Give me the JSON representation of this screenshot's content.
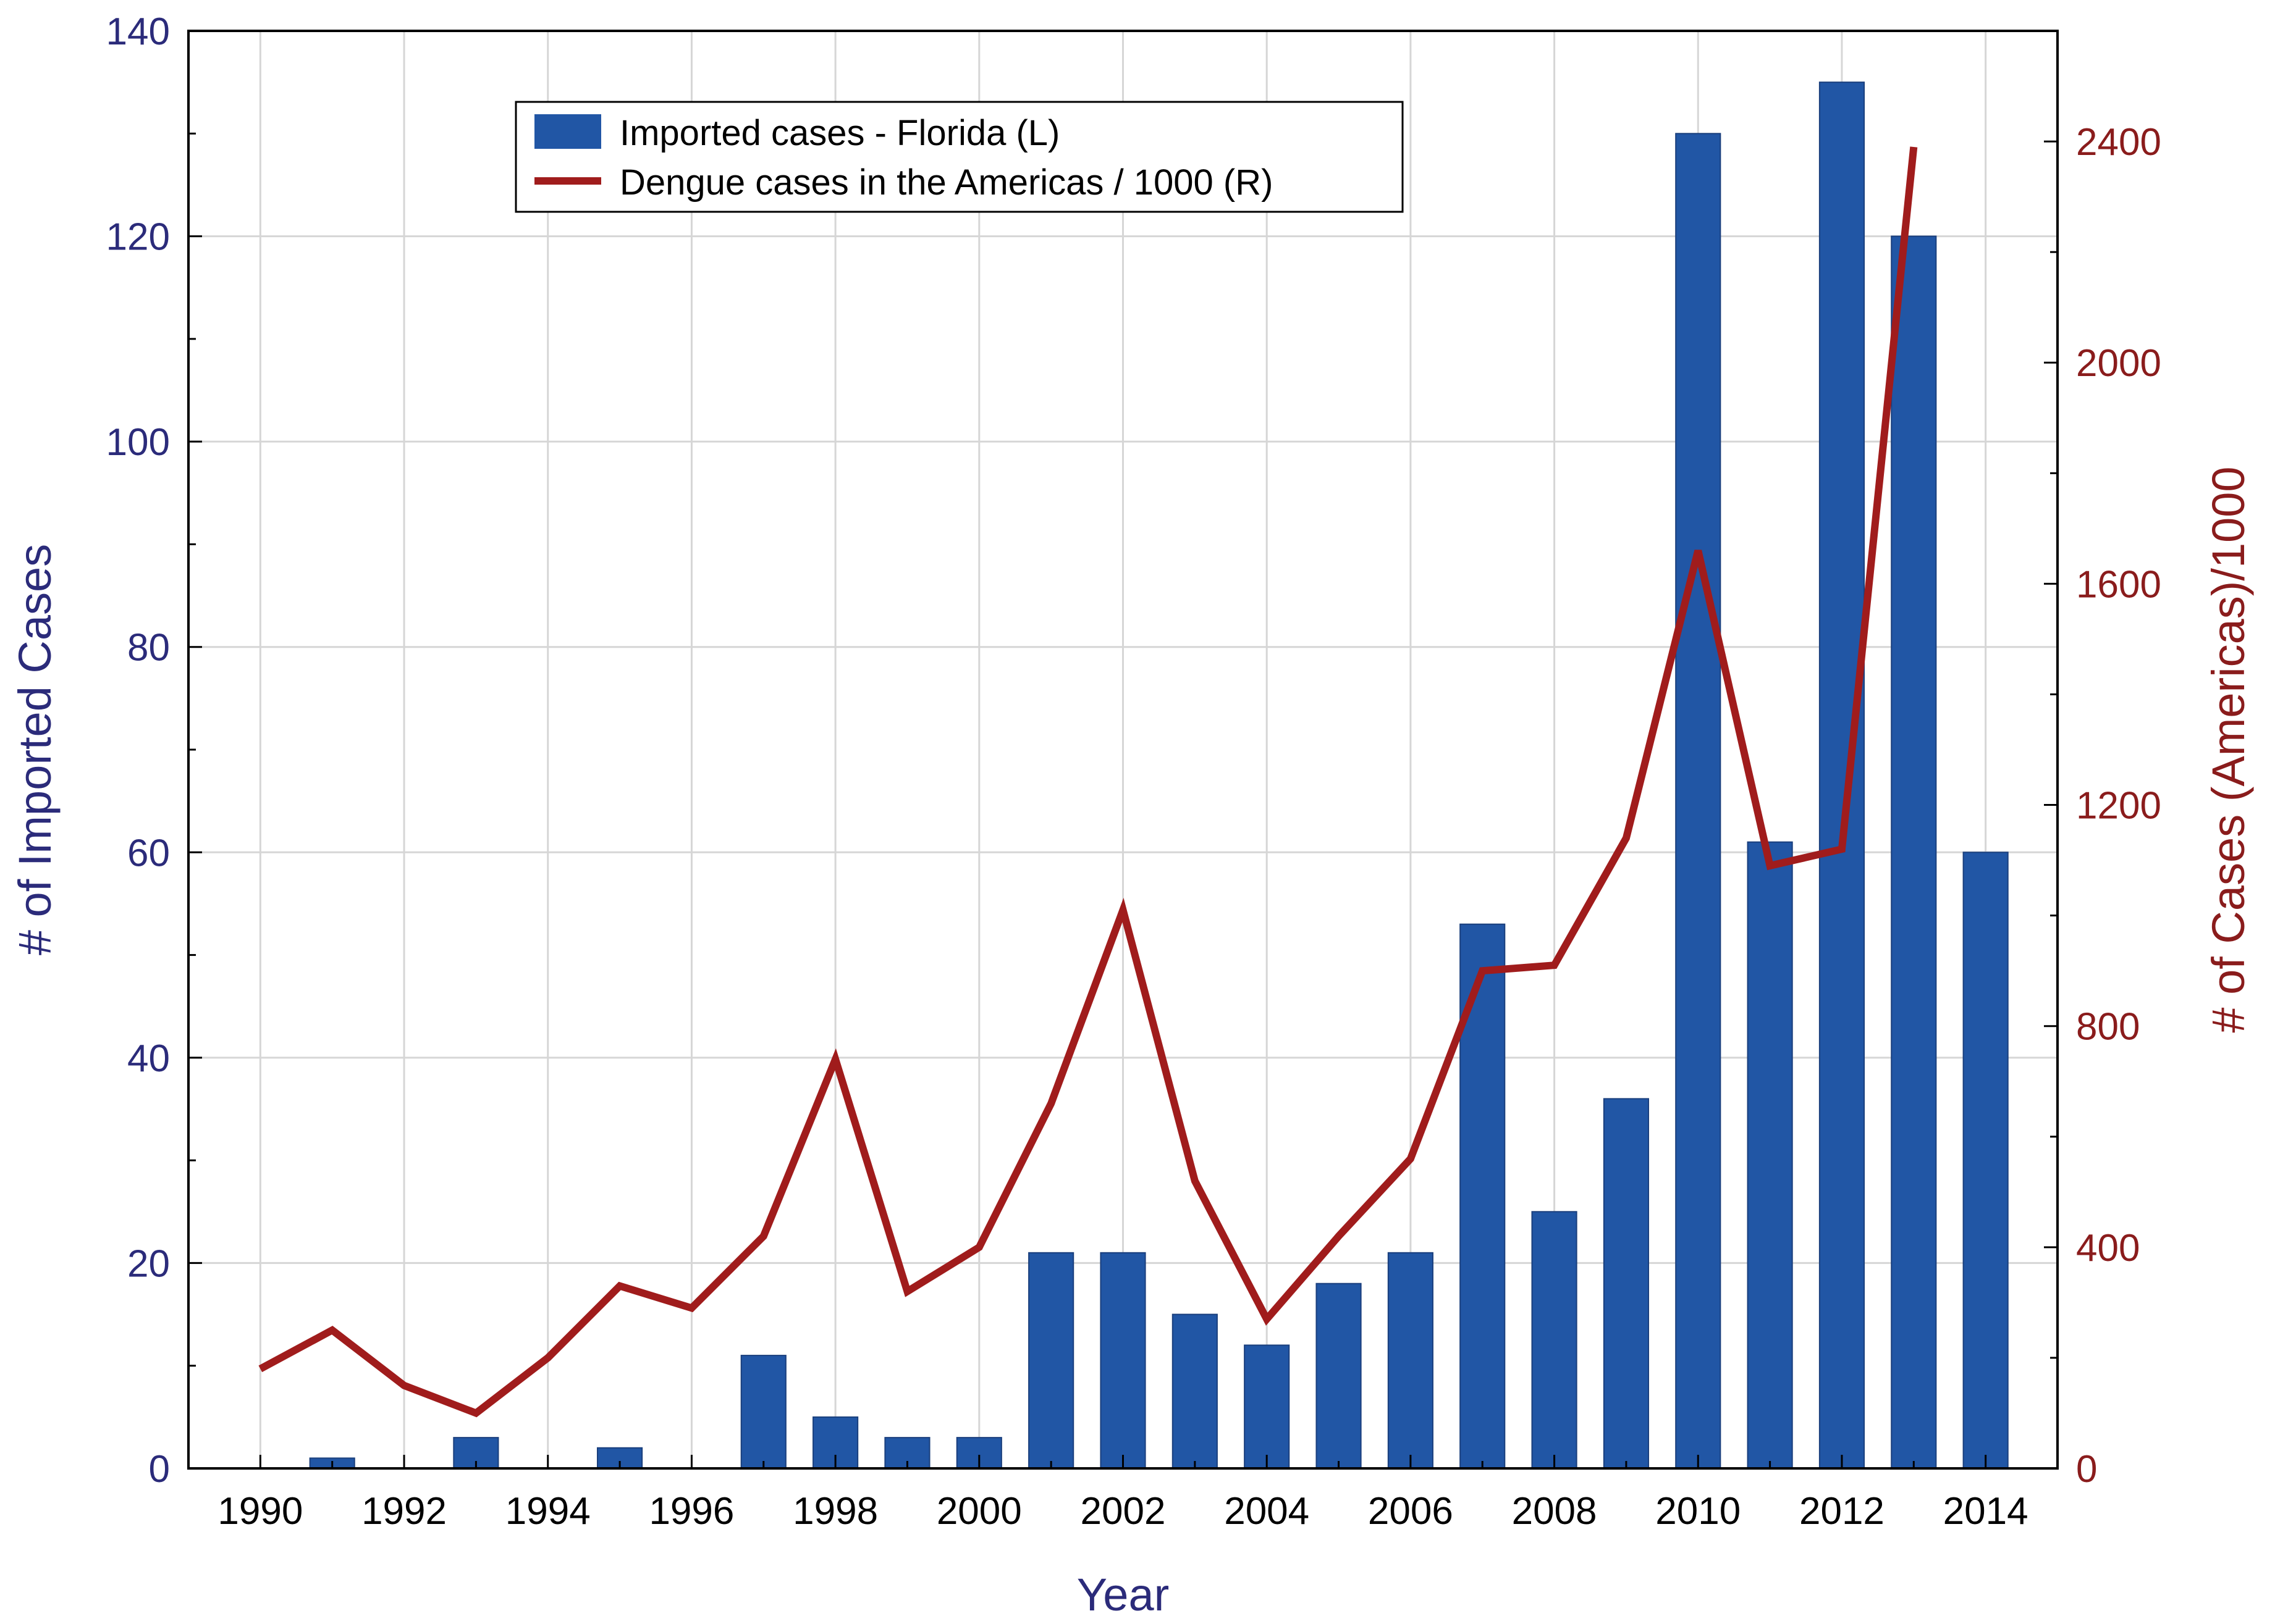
{
  "chart_data": {
    "type": "bar",
    "xlabel": "Year",
    "ylabel_left": "# of Imported Cases",
    "ylabel_right": "# of Cases (Americas)/1000",
    "x_range": [
      1989,
      2015
    ],
    "ylim_left": [
      0,
      140
    ],
    "ylim_right": [
      0,
      2600
    ],
    "x_ticks": [
      1990,
      1992,
      1994,
      1996,
      1998,
      2000,
      2002,
      2004,
      2006,
      2008,
      2010,
      2012,
      2014
    ],
    "y_ticks_left": [
      0,
      20,
      40,
      60,
      80,
      100,
      120,
      140
    ],
    "y_ticks_right": [
      0,
      400,
      800,
      1200,
      1600,
      2000,
      2400
    ],
    "grid": true,
    "legend_position": "top-center",
    "series": [
      {
        "name": "Imported cases - Florida (L)",
        "type": "bar",
        "axis": "left",
        "color": "#2156a5",
        "x": [
          1990,
          1991,
          1992,
          1993,
          1994,
          1995,
          1996,
          1997,
          1998,
          1999,
          2000,
          2001,
          2002,
          2003,
          2004,
          2005,
          2006,
          2007,
          2008,
          2009,
          2010,
          2011,
          2012,
          2013,
          2014
        ],
        "values": [
          0,
          1,
          0,
          3,
          0,
          2,
          0,
          11,
          5,
          3,
          3,
          21,
          21,
          15,
          12,
          18,
          21,
          53,
          25,
          36,
          130,
          61,
          135,
          120,
          60
        ]
      },
      {
        "name": "Dengue cases in the Americas / 1000 (R)",
        "type": "line",
        "axis": "right",
        "color": "#a01c1c",
        "x": [
          1990,
          1991,
          1992,
          1993,
          1994,
          1995,
          1996,
          1997,
          1998,
          1999,
          2000,
          2001,
          2002,
          2003,
          2004,
          2005,
          2006,
          2007,
          2008,
          2009,
          2010,
          2011,
          2012,
          2013
        ],
        "values": [
          180,
          250,
          150,
          100,
          200,
          330,
          290,
          420,
          740,
          320,
          400,
          660,
          1010,
          520,
          270,
          420,
          560,
          900,
          910,
          1140,
          1660,
          1090,
          1120,
          2390
        ]
      }
    ]
  }
}
